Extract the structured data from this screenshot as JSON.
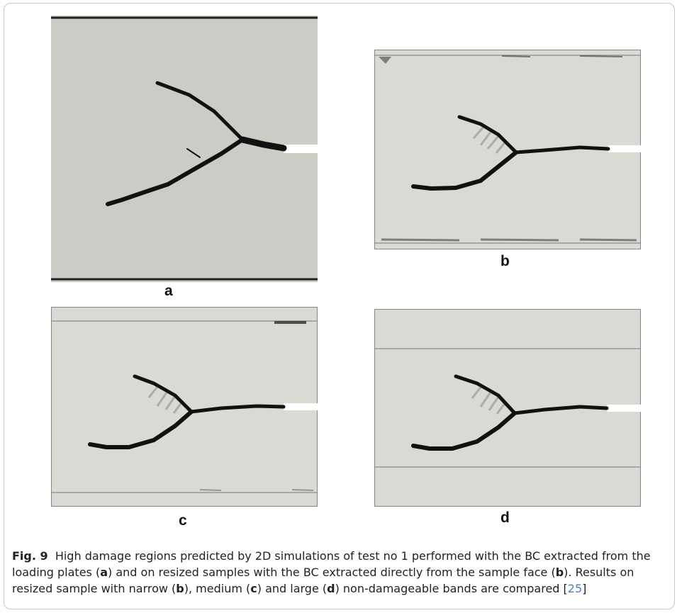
{
  "panels": {
    "a": {
      "label": "a"
    },
    "b": {
      "label": "b"
    },
    "c": {
      "label": "c"
    },
    "d": {
      "label": "d"
    }
  },
  "caption": {
    "fig_ref": "Fig. 9",
    "text_1": "High damage regions predicted by 2D simulations of test no 1 performed with the BC extracted from the loading plates (",
    "bold_a": "a",
    "text_2": ") and on resized samples with the BC extracted directly from the sample face (",
    "bold_b1": "b",
    "text_3": "). Results on resized sample with narrow (",
    "bold_b2": "b",
    "text_4": "), medium (",
    "bold_c": "c",
    "text_5": ") and large (",
    "bold_d": "d",
    "text_6": ") non-damageable bands are compared [",
    "citation": "25",
    "text_7": "]"
  },
  "colors": {
    "sample_fill_a": "#cdcbc5",
    "sample_fill": "#dad9d4",
    "crack": "#111111",
    "citation": "#4a7fc0"
  }
}
